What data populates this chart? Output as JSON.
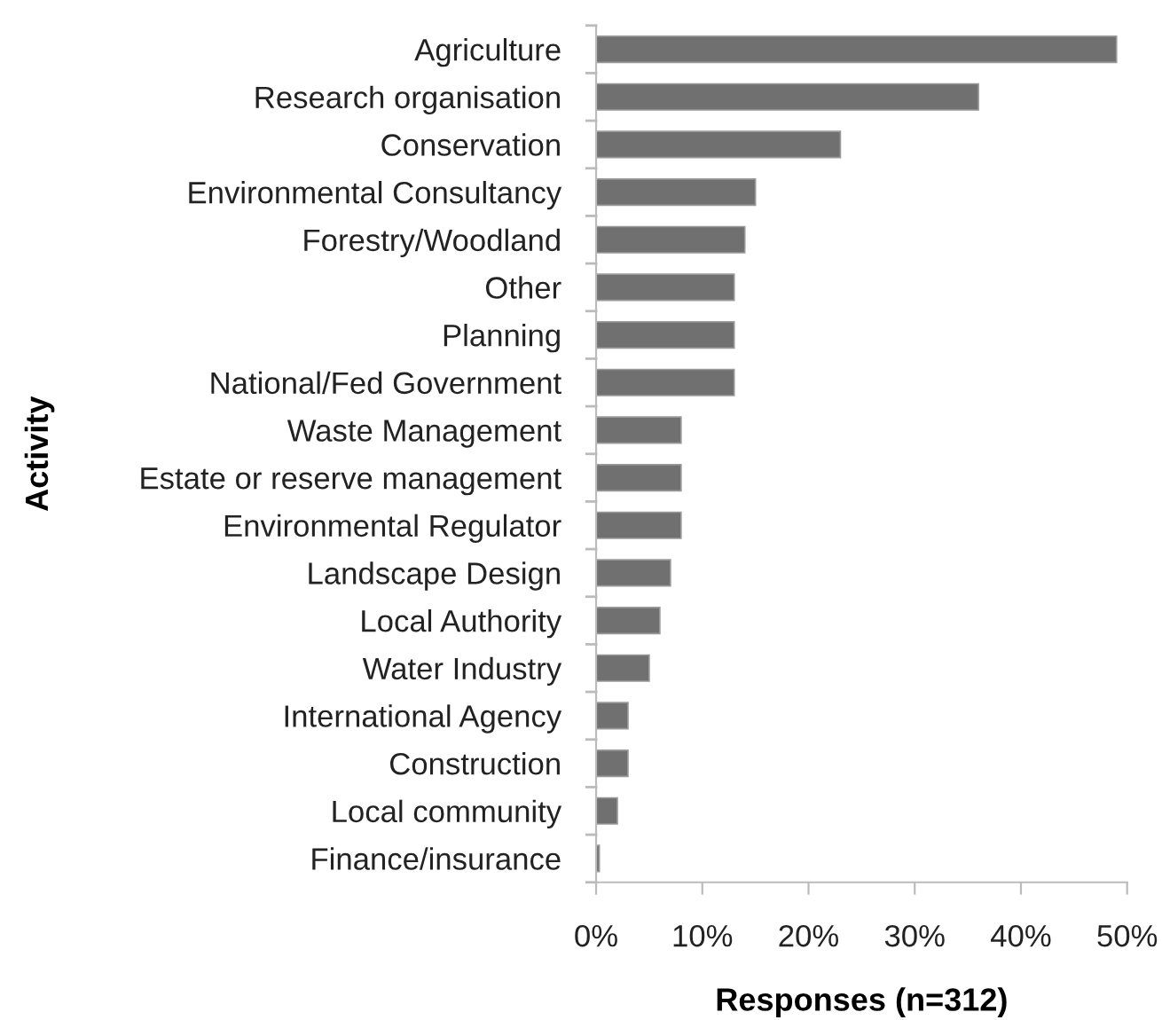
{
  "chart_data": {
    "type": "bar",
    "orientation": "horizontal",
    "xlabel": "Responses (n=312)",
    "ylabel": "Activity",
    "categories": [
      "Agriculture",
      "Research organisation",
      "Conservation",
      "Environmental Consultancy",
      "Forestry/Woodland",
      "Other",
      "Planning",
      "National/Fed Government",
      "Waste Management",
      "Estate or reserve management",
      "Environmental Regulator",
      "Landscape Design",
      "Local Authority",
      "Water Industry",
      "International Agency",
      "Construction",
      "Local community",
      "Finance/insurance"
    ],
    "values": [
      49,
      36,
      23,
      15,
      14,
      13,
      13,
      13,
      8,
      8,
      8,
      7,
      6,
      5,
      3,
      3,
      2,
      0.3
    ],
    "color": "#707070",
    "xlim": [
      0,
      50
    ],
    "xticks": [
      {
        "value": 0,
        "label": "0%"
      },
      {
        "value": 10,
        "label": "10%"
      },
      {
        "value": 20,
        "label": "20%"
      },
      {
        "value": 30,
        "label": "30%"
      },
      {
        "value": 40,
        "label": "40%"
      },
      {
        "value": 50,
        "label": "50%"
      }
    ],
    "grid": false,
    "legend": false
  }
}
